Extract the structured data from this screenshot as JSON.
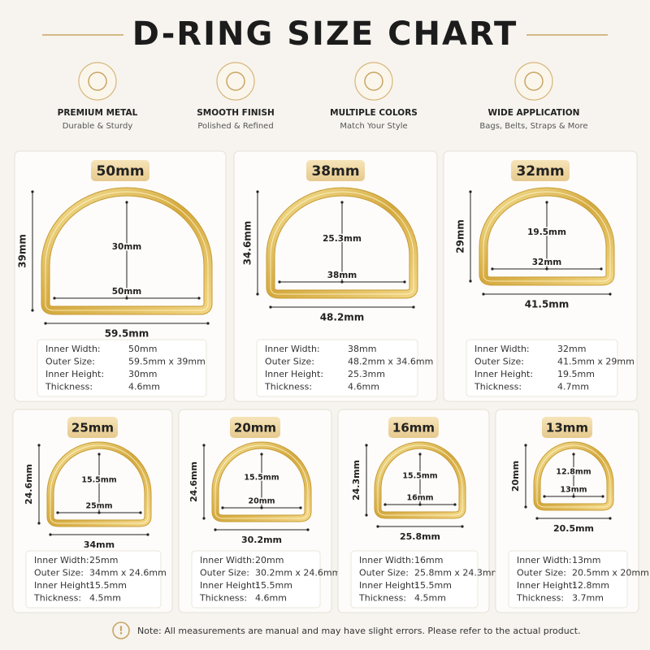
{
  "header": {
    "title": "D-RING SIZE CHART"
  },
  "features": [
    {
      "title": "PREMIUM METAL",
      "subtitle": "Durable & Sturdy"
    },
    {
      "title": "SMOOTH FINISH",
      "subtitle": "Polished & Refined"
    },
    {
      "title": "MULTIPLE COLORS",
      "subtitle": "Match Your Style"
    },
    {
      "title": "WIDE APPLICATION",
      "subtitle": "Bags, Belts, Straps & More"
    }
  ],
  "rings": [
    {
      "size": "50mm",
      "outer_width": "59.5mm",
      "outer_height": "39mm",
      "inner_height": "30mm",
      "inner_width": "50mm",
      "specs": [
        [
          "Inner Width:",
          "50mm"
        ],
        [
          "Outer Size:",
          "59.5mm x 39mm"
        ],
        [
          "Inner Height:",
          "30mm"
        ],
        [
          "Thickness:",
          "4.6mm"
        ]
      ]
    },
    {
      "size": "38mm",
      "outer_width": "48.2mm",
      "outer_height": "34.6mm",
      "inner_height": "25.3mm",
      "inner_width": "38mm",
      "specs": [
        [
          "Inner Width:",
          "38mm"
        ],
        [
          "Outer Size:",
          "48.2mm x 34.6mm"
        ],
        [
          "Inner Height:",
          "25.3mm"
        ],
        [
          "Thickness:",
          "4.6mm"
        ]
      ]
    },
    {
      "size": "32mm",
      "outer_width": "41.5mm",
      "outer_height": "29mm",
      "inner_height": "19.5mm",
      "inner_width": "32mm",
      "specs": [
        [
          "Inner Width:",
          "32mm"
        ],
        [
          "Outer Size:",
          "41.5mm x 29mm"
        ],
        [
          "Inner Height:",
          "19.5mm"
        ],
        [
          "Thickness:",
          "4.7mm"
        ]
      ]
    },
    {
      "size": "25mm",
      "outer_width": "34mm",
      "outer_height": "24.6mm",
      "inner_height": "15.5mm",
      "inner_width": "25mm",
      "specs": [
        [
          "Inner Width:",
          "25mm"
        ],
        [
          "Outer Size:",
          "34mm x 24.6mm"
        ],
        [
          "Inner Height:",
          "15.5mm"
        ],
        [
          "Thickness:",
          "4.5mm"
        ]
      ]
    },
    {
      "size": "20mm",
      "outer_width": "30.2mm",
      "outer_height": "24.6mm",
      "inner_height": "15.5mm",
      "inner_width": "20mm",
      "specs": [
        [
          "Inner Width:",
          "20mm"
        ],
        [
          "Outer Size:",
          "30.2mm x 24.6mm"
        ],
        [
          "Inner Height:",
          "15.5mm"
        ],
        [
          "Thickness:",
          "4.6mm"
        ]
      ]
    },
    {
      "size": "16mm",
      "outer_width": "25.8mm",
      "outer_height": "24.3mm",
      "inner_height": "15.5mm",
      "inner_width": "16mm",
      "specs": [
        [
          "Inner Width:",
          "16mm"
        ],
        [
          "Outer Size:",
          "25.8mm x 24.3mm"
        ],
        [
          "Inner Height:",
          "15.5mm"
        ],
        [
          "Thickness:",
          "4.5mm"
        ]
      ]
    },
    {
      "size": "13mm",
      "outer_width": "20.5mm",
      "outer_height": "20mm",
      "inner_height": "12.8mm",
      "inner_width": "13mm",
      "specs": [
        [
          "Inner Width:",
          "13mm"
        ],
        [
          "Outer Size:",
          "20.5mm x 20mm"
        ],
        [
          "Inner Height:",
          "12.8mm"
        ],
        [
          "Thickness:",
          "3.7mm"
        ]
      ]
    }
  ],
  "note": "Note: All measurements are manual and may have slight errors. Please refer to the actual product."
}
